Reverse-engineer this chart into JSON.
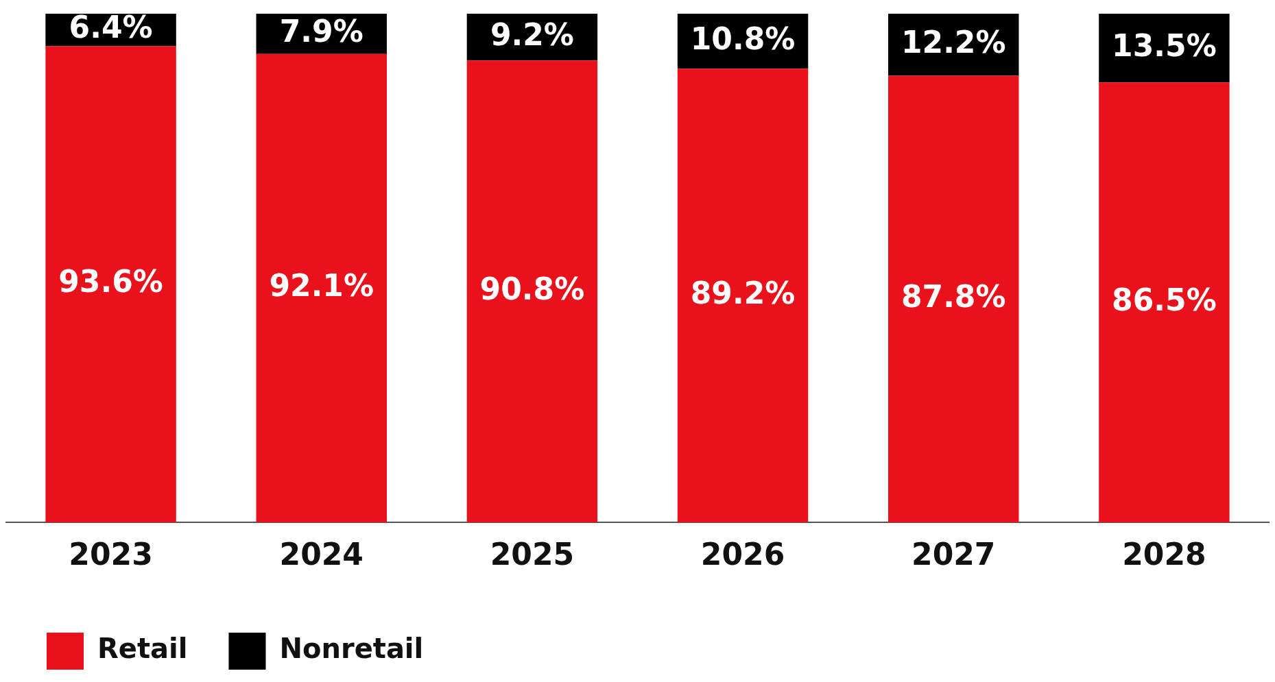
{
  "chart_data": {
    "type": "bar",
    "stacked": true,
    "categories": [
      "2023",
      "2024",
      "2025",
      "2026",
      "2027",
      "2028"
    ],
    "series": [
      {
        "name": "Retail",
        "color": "#e8111c",
        "values": [
          93.6,
          92.1,
          90.8,
          89.2,
          87.8,
          86.5
        ],
        "value_labels": [
          "93.6%",
          "92.1%",
          "90.8%",
          "89.2%",
          "87.8%",
          "86.5%"
        ]
      },
      {
        "name": "Nonretail",
        "color": "#000000",
        "values": [
          6.4,
          7.9,
          9.2,
          10.8,
          12.2,
          13.5
        ],
        "value_labels": [
          "6.4%",
          "7.9%",
          "9.2%",
          "10.8%",
          "12.2%",
          "13.5%"
        ]
      }
    ],
    "ylim": [
      0,
      100
    ],
    "tick_labels": "x",
    "legend": "bottom left"
  }
}
